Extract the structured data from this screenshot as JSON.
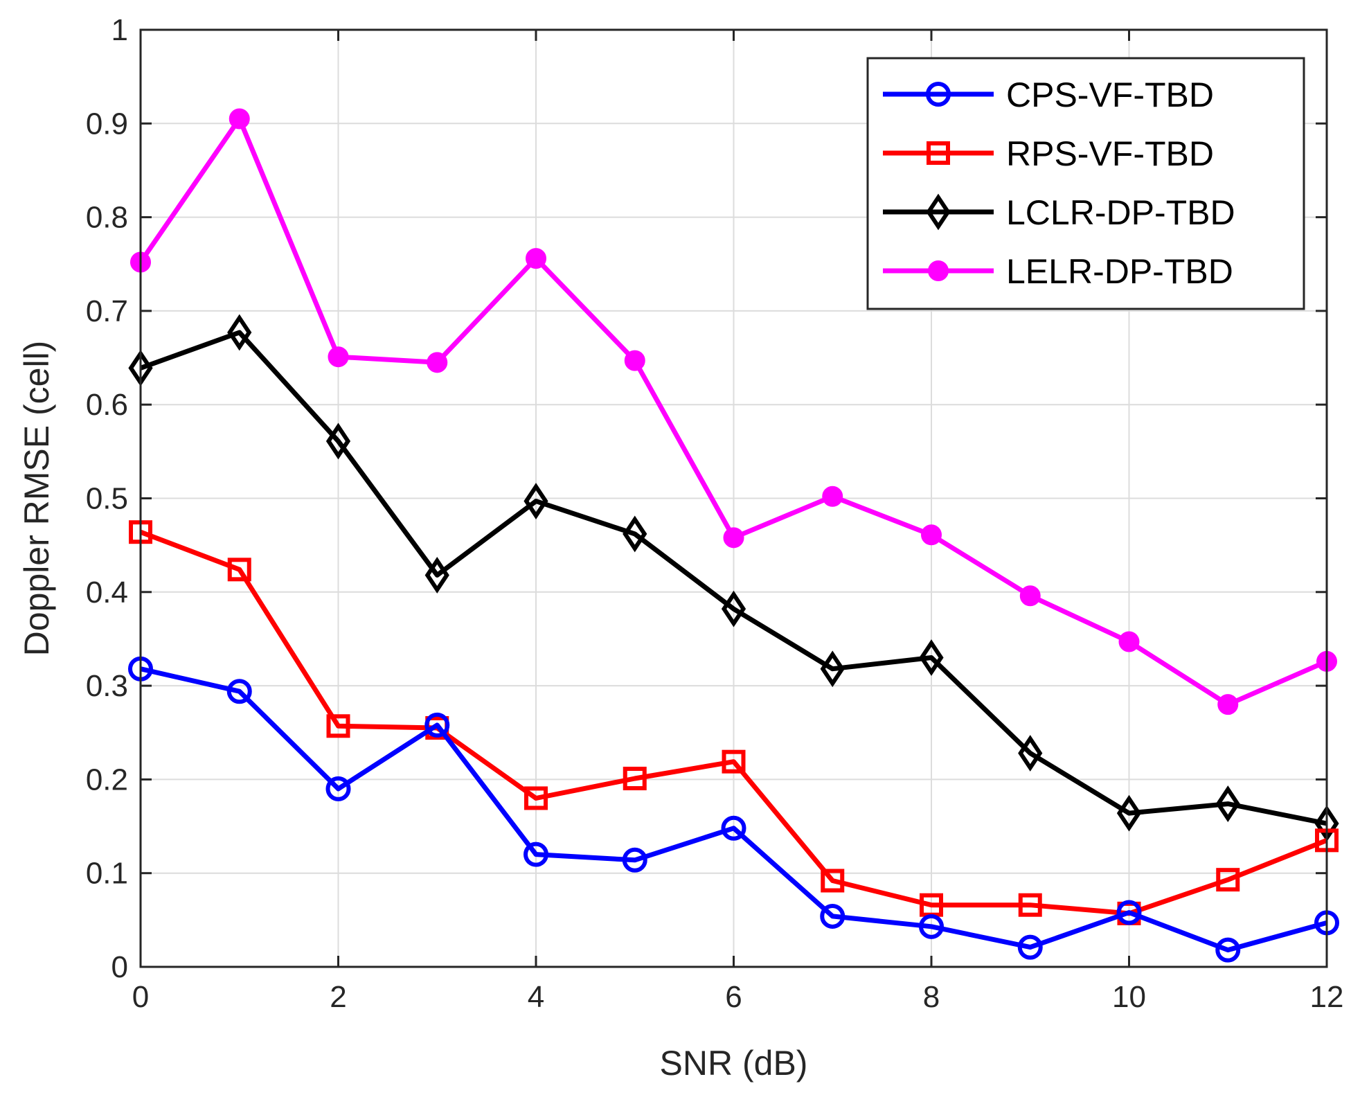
{
  "chart_data": {
    "type": "line",
    "xlabel": "SNR (dB)",
    "ylabel": "Doppler RMSE (cell)",
    "xlim": [
      0,
      12
    ],
    "ylim": [
      0,
      1
    ],
    "xticks": [
      "0",
      "2",
      "4",
      "6",
      "8",
      "10",
      "12"
    ],
    "yticks": [
      "0",
      "0.1",
      "0.2",
      "0.3",
      "0.4",
      "0.5",
      "0.6",
      "0.7",
      "0.8",
      "0.9",
      "1"
    ],
    "grid": true,
    "legend_position": "top-right",
    "x": [
      0,
      1,
      2,
      3,
      4,
      5,
      6,
      7,
      8,
      9,
      10,
      11,
      12
    ],
    "series": [
      {
        "name": "CPS-VF-TBD",
        "color": "#0000ff",
        "marker": "circle-open",
        "values": [
          0.318,
          0.294,
          0.19,
          0.258,
          0.12,
          0.114,
          0.148,
          0.054,
          0.043,
          0.021,
          0.058,
          0.018,
          0.047
        ]
      },
      {
        "name": "RPS-VF-TBD",
        "color": "#ff0000",
        "marker": "square-open",
        "values": [
          0.464,
          0.424,
          0.257,
          0.255,
          0.18,
          0.201,
          0.219,
          0.092,
          0.066,
          0.066,
          0.057,
          0.093,
          0.135
        ]
      },
      {
        "name": "LCLR-DP-TBD",
        "color": "#000000",
        "marker": "diamond-open",
        "values": [
          0.639,
          0.677,
          0.561,
          0.418,
          0.497,
          0.462,
          0.382,
          0.318,
          0.33,
          0.228,
          0.164,
          0.174,
          0.153
        ]
      },
      {
        "name": "LELR-DP-TBD",
        "color": "#ff00ff",
        "marker": "circle-filled",
        "values": [
          0.752,
          0.905,
          0.651,
          0.645,
          0.756,
          0.647,
          0.458,
          0.502,
          0.461,
          0.396,
          0.347,
          0.28,
          0.326
        ]
      }
    ]
  }
}
